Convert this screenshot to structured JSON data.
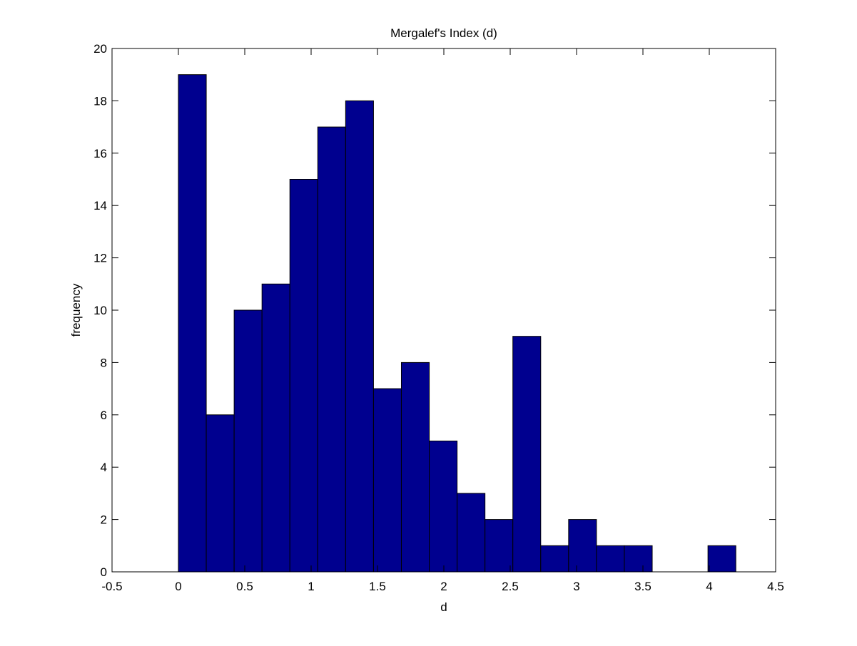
{
  "chart_data": {
    "type": "bar",
    "title": "Mergalef's Index (d)",
    "xlabel": "d",
    "ylabel": "frequency",
    "xlim": [
      -0.5,
      4.5
    ],
    "ylim": [
      0,
      20
    ],
    "xticks": [
      -0.5,
      0,
      0.5,
      1,
      1.5,
      2,
      2.5,
      3,
      3.5,
      4,
      4.5
    ],
    "xtick_labels": [
      "-0.5",
      "0",
      "0.5",
      "1",
      "1.5",
      "2",
      "2.5",
      "3",
      "3.5",
      "4",
      "4.5"
    ],
    "yticks": [
      0,
      2,
      4,
      6,
      8,
      10,
      12,
      14,
      16,
      18,
      20
    ],
    "ytick_labels": [
      "0",
      "2",
      "4",
      "6",
      "8",
      "10",
      "12",
      "14",
      "16",
      "18",
      "20"
    ],
    "bin_start": 0,
    "bin_width": 0.21,
    "values": [
      19,
      6,
      10,
      11,
      15,
      17,
      18,
      7,
      8,
      5,
      3,
      2,
      9,
      1,
      2,
      1,
      1,
      0,
      0,
      1
    ],
    "grid": false,
    "bar_color": "#00008F",
    "edge_color": "#000000"
  }
}
